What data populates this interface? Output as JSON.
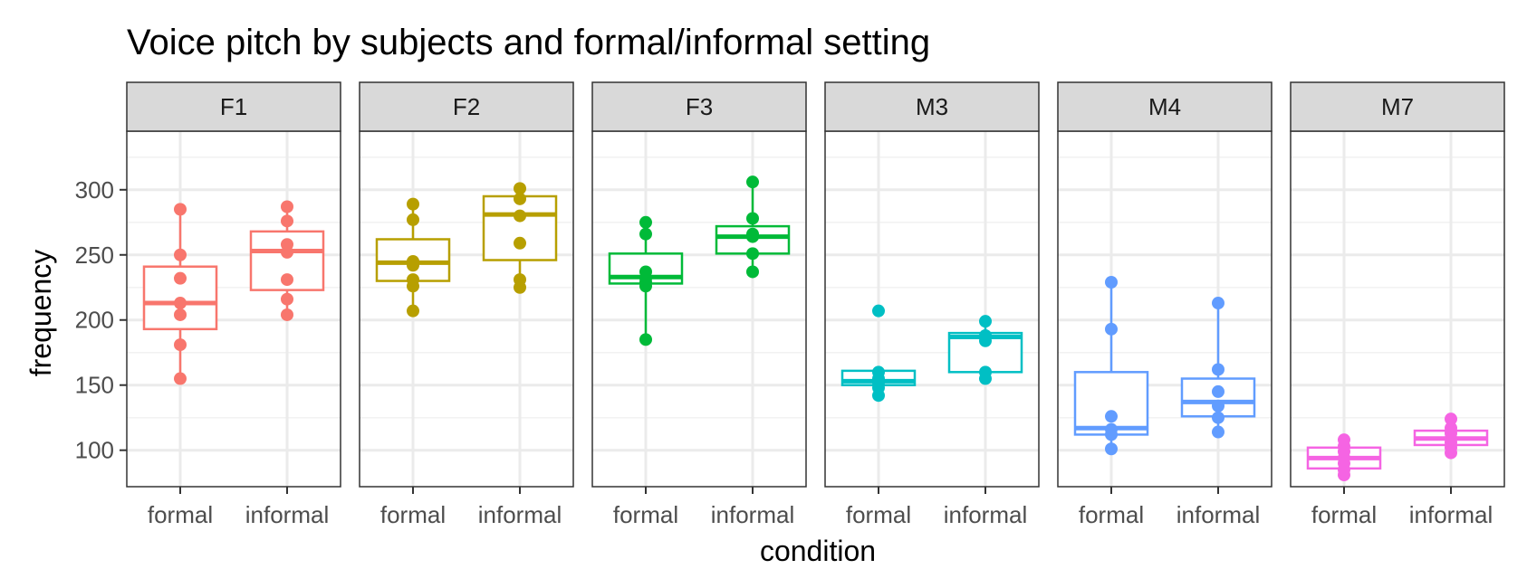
{
  "chart_data": {
    "type": "boxplot",
    "title": "Voice pitch by subjects and formal/informal setting",
    "xlabel": "condition",
    "ylabel": "frequency",
    "ylim": [
      72,
      345
    ],
    "yticks": [
      100,
      150,
      200,
      250,
      300
    ],
    "categories": [
      "formal",
      "informal"
    ],
    "grid": true,
    "legend": "none",
    "panels": [
      {
        "name": "F1",
        "color": "#F8766D",
        "groups": [
          {
            "condition": "formal",
            "min": 155,
            "q1": 193,
            "median": 213,
            "q3": 241,
            "max": 285,
            "points": [
              155,
              181,
              204,
              213,
              232,
              250,
              285
            ]
          },
          {
            "condition": "informal",
            "min": 204,
            "q1": 223,
            "median": 253,
            "q3": 268,
            "max": 287,
            "points": [
              204,
              216,
              231,
              252,
              258,
              276,
              287
            ]
          }
        ]
      },
      {
        "name": "F2",
        "color": "#B79F00",
        "groups": [
          {
            "condition": "formal",
            "min": 207,
            "q1": 230,
            "median": 244,
            "q3": 262,
            "max": 289,
            "points": [
              207,
              226,
              231,
              242,
              245,
              277,
              289
            ]
          },
          {
            "condition": "informal",
            "min": 225,
            "q1": 246,
            "median": 281,
            "q3": 295,
            "max": 301,
            "points": [
              225,
              231,
              259,
              280,
              293,
              301
            ]
          }
        ]
      },
      {
        "name": "F3",
        "color": "#00BA38",
        "groups": [
          {
            "condition": "formal",
            "min": 185,
            "q1": 228,
            "median": 233,
            "q3": 251,
            "max": 275,
            "points": [
              185,
              226,
              229,
              232,
              237,
              266,
              275
            ]
          },
          {
            "condition": "informal",
            "min": 237,
            "q1": 251,
            "median": 264,
            "q3": 272,
            "max": 306,
            "points": [
              237,
              251,
              264,
              266,
              278,
              306
            ]
          }
        ]
      },
      {
        "name": "M3",
        "color": "#00BFC4",
        "groups": [
          {
            "condition": "formal",
            "min": 142,
            "q1": 150,
            "median": 153,
            "q3": 161,
            "max": 161,
            "outliers": [
              207
            ],
            "points": [
              142,
              148,
              152,
              155,
              160,
              207
            ]
          },
          {
            "condition": "informal",
            "min": 155,
            "q1": 160,
            "median": 187,
            "q3": 190,
            "max": 199,
            "points": [
              155,
              160,
              184,
              188,
              199
            ]
          }
        ]
      },
      {
        "name": "M4",
        "color": "#619CFF",
        "groups": [
          {
            "condition": "formal",
            "min": 101,
            "q1": 112,
            "median": 117,
            "q3": 160,
            "max": 229,
            "points": [
              101,
              112,
              116,
              126,
              193,
              229
            ]
          },
          {
            "condition": "informal",
            "min": 114,
            "q1": 126,
            "median": 137,
            "q3": 155,
            "max": 213,
            "points": [
              114,
              125,
              134,
              145,
              162,
              213
            ]
          }
        ]
      },
      {
        "name": "M7",
        "color": "#F564E3",
        "groups": [
          {
            "condition": "formal",
            "min": 81,
            "q1": 86,
            "median": 94,
            "q3": 102,
            "max": 109,
            "points": [
              81,
              85,
              90,
              94,
              99,
              103,
              108
            ]
          },
          {
            "condition": "informal",
            "min": 98,
            "q1": 104,
            "median": 109,
            "q3": 115,
            "max": 124,
            "points": [
              98,
              102,
              106,
              109,
              113,
              117,
              124
            ]
          }
        ]
      }
    ]
  }
}
